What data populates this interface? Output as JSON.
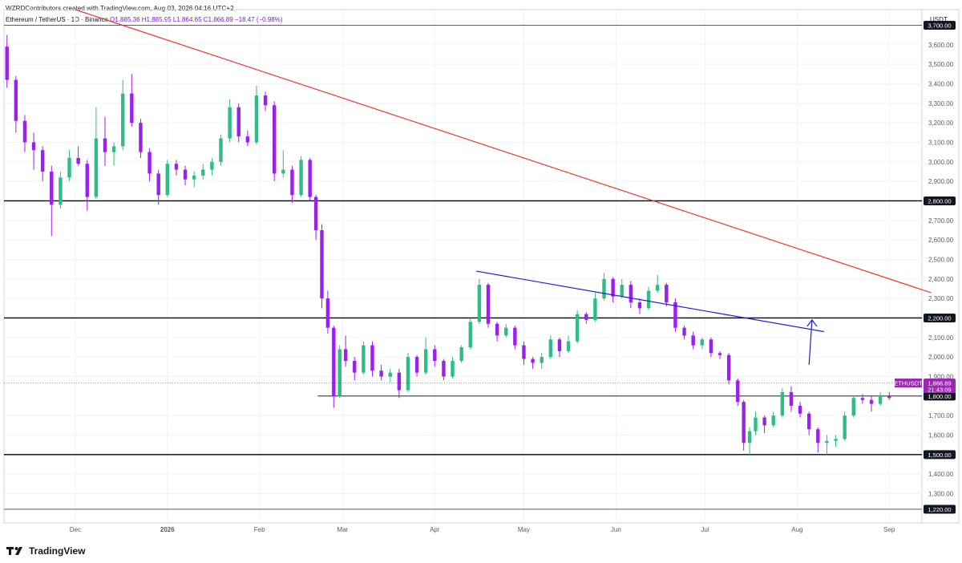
{
  "header": {
    "credit": "WZRDContributors created with TradingView.com, Aug 03, 2026 04:16 UTC+2",
    "symbol_line": "Ethereum / TetherUS · 1D · Binance",
    "open": "O1,885.36",
    "high": "H1,885.95",
    "low": "L1,864.65",
    "close": "C1,866.89",
    "change": "−18.47 (−0.98%)"
  },
  "axis": {
    "unit": "USDT",
    "y_ticks": [
      "3,600.00",
      "3,500.00",
      "3,400.00",
      "3,300.00",
      "3,200.00",
      "3,100.00",
      "3,000.00",
      "2,900.00",
      "2,700.00",
      "2,600.00",
      "2,500.00",
      "2,400.00",
      "2,300.00",
      "2,100.00",
      "2,000.00",
      "1,900.00",
      "1,700.00",
      "1,600.00",
      "1,400.00",
      "1,300.00"
    ],
    "x_ticks": [
      "Dec",
      "2026",
      "Feb",
      "Mar",
      "Apr",
      "May",
      "Jun",
      "Jul",
      "Aug",
      "Sep"
    ]
  },
  "price_tag": {
    "symbol": "ETHUSDT",
    "price": "1,866.89",
    "countdown": "21:43:09"
  },
  "level_labels": [
    "3,700.00",
    "2,800.00",
    "2,200.00",
    "1,800.00",
    "1,500.00",
    "1,220.00"
  ],
  "footer": {
    "brand": "TradingView"
  },
  "colors": {
    "up": "#2ebd85",
    "down": "#9c1ef0",
    "resistance": "#e53935",
    "trendline": "#1e22c8",
    "level": "#000000",
    "accent": "#9c27b0"
  },
  "chart_data": {
    "type": "candlestick",
    "ylim": [
      1150,
      3780
    ],
    "x_domain": [
      "2025-11-07",
      "2026-09-12"
    ],
    "series": [
      {
        "x": "2025-11-08",
        "o": 3590,
        "h": 3650,
        "l": 3380,
        "c": 3420
      },
      {
        "x": "2025-11-11",
        "o": 3420,
        "h": 3440,
        "l": 3150,
        "c": 3210
      },
      {
        "x": "2025-11-14",
        "o": 3210,
        "h": 3240,
        "l": 3050,
        "c": 3100
      },
      {
        "x": "2025-11-17",
        "o": 3100,
        "h": 3150,
        "l": 2960,
        "c": 3060
      },
      {
        "x": "2025-11-20",
        "o": 3060,
        "h": 3080,
        "l": 2900,
        "c": 2950
      },
      {
        "x": "2025-11-23",
        "o": 2950,
        "h": 2980,
        "l": 2620,
        "c": 2780
      },
      {
        "x": "2025-11-26",
        "o": 2780,
        "h": 2950,
        "l": 2760,
        "c": 2920
      },
      {
        "x": "2025-11-29",
        "o": 2920,
        "h": 3060,
        "l": 2900,
        "c": 3020
      },
      {
        "x": "2025-12-02",
        "o": 3020,
        "h": 3080,
        "l": 2980,
        "c": 2990
      },
      {
        "x": "2025-12-05",
        "o": 2990,
        "h": 3010,
        "l": 2750,
        "c": 2820
      },
      {
        "x": "2025-12-08",
        "o": 2820,
        "h": 3280,
        "l": 2810,
        "c": 3120
      },
      {
        "x": "2025-12-11",
        "o": 3120,
        "h": 3230,
        "l": 2980,
        "c": 3050
      },
      {
        "x": "2025-12-14",
        "o": 3050,
        "h": 3100,
        "l": 2980,
        "c": 3080
      },
      {
        "x": "2025-12-17",
        "o": 3080,
        "h": 3420,
        "l": 3060,
        "c": 3350
      },
      {
        "x": "2025-12-20",
        "o": 3350,
        "h": 3450,
        "l": 3180,
        "c": 3200
      },
      {
        "x": "2025-12-23",
        "o": 3200,
        "h": 3220,
        "l": 3020,
        "c": 3050
      },
      {
        "x": "2025-12-26",
        "o": 3050,
        "h": 3070,
        "l": 2900,
        "c": 2940
      },
      {
        "x": "2025-12-29",
        "o": 2940,
        "h": 2960,
        "l": 2780,
        "c": 2830
      },
      {
        "x": "2026-01-01",
        "o": 2830,
        "h": 3010,
        "l": 2820,
        "c": 2990
      },
      {
        "x": "2026-01-04",
        "o": 2990,
        "h": 3010,
        "l": 2930,
        "c": 2960
      },
      {
        "x": "2026-01-07",
        "o": 2960,
        "h": 2980,
        "l": 2880,
        "c": 2910
      },
      {
        "x": "2026-01-10",
        "o": 2910,
        "h": 2950,
        "l": 2870,
        "c": 2930
      },
      {
        "x": "2026-01-13",
        "o": 2930,
        "h": 2990,
        "l": 2910,
        "c": 2960
      },
      {
        "x": "2026-01-16",
        "o": 2960,
        "h": 3020,
        "l": 2930,
        "c": 3000
      },
      {
        "x": "2026-01-19",
        "o": 3000,
        "h": 3140,
        "l": 2980,
        "c": 3120
      },
      {
        "x": "2026-01-22",
        "o": 3120,
        "h": 3320,
        "l": 3100,
        "c": 3280
      },
      {
        "x": "2026-01-25",
        "o": 3280,
        "h": 3300,
        "l": 3100,
        "c": 3130
      },
      {
        "x": "2026-01-28",
        "o": 3130,
        "h": 3160,
        "l": 3080,
        "c": 3100
      },
      {
        "x": "2026-01-31",
        "o": 3100,
        "h": 3390,
        "l": 3090,
        "c": 3340
      },
      {
        "x": "2026-02-03",
        "o": 3340,
        "h": 3360,
        "l": 3260,
        "c": 3290
      },
      {
        "x": "2026-02-06",
        "o": 3290,
        "h": 3310,
        "l": 2900,
        "c": 2940
      },
      {
        "x": "2026-02-09",
        "o": 2940,
        "h": 3060,
        "l": 2920,
        "c": 2960
      },
      {
        "x": "2026-02-12",
        "o": 2960,
        "h": 2980,
        "l": 2790,
        "c": 2830
      },
      {
        "x": "2026-02-15",
        "o": 2830,
        "h": 3030,
        "l": 2820,
        "c": 3010
      },
      {
        "x": "2026-02-18",
        "o": 3010,
        "h": 3020,
        "l": 2800,
        "c": 2820
      },
      {
        "x": "2026-02-20",
        "o": 2820,
        "h": 2830,
        "l": 2600,
        "c": 2650
      },
      {
        "x": "2026-02-22",
        "o": 2650,
        "h": 2680,
        "l": 2250,
        "c": 2300
      },
      {
        "x": "2026-02-24",
        "o": 2300,
        "h": 2340,
        "l": 2120,
        "c": 2150
      },
      {
        "x": "2026-02-26",
        "o": 2150,
        "h": 2160,
        "l": 1740,
        "c": 1800
      },
      {
        "x": "2026-02-28",
        "o": 1800,
        "h": 2060,
        "l": 1790,
        "c": 2040
      },
      {
        "x": "2026-03-02",
        "o": 2040,
        "h": 2110,
        "l": 1950,
        "c": 1980
      },
      {
        "x": "2026-03-05",
        "o": 1980,
        "h": 2000,
        "l": 1880,
        "c": 1920
      },
      {
        "x": "2026-03-08",
        "o": 1920,
        "h": 2080,
        "l": 1910,
        "c": 2060
      },
      {
        "x": "2026-03-11",
        "o": 2060,
        "h": 2080,
        "l": 1900,
        "c": 1930
      },
      {
        "x": "2026-03-14",
        "o": 1930,
        "h": 1960,
        "l": 1880,
        "c": 1900
      },
      {
        "x": "2026-03-17",
        "o": 1900,
        "h": 1940,
        "l": 1870,
        "c": 1920
      },
      {
        "x": "2026-03-20",
        "o": 1920,
        "h": 1940,
        "l": 1790,
        "c": 1830
      },
      {
        "x": "2026-03-23",
        "o": 1830,
        "h": 2020,
        "l": 1820,
        "c": 2000
      },
      {
        "x": "2026-03-26",
        "o": 2000,
        "h": 2010,
        "l": 1900,
        "c": 1920
      },
      {
        "x": "2026-03-29",
        "o": 1920,
        "h": 2100,
        "l": 1910,
        "c": 2040
      },
      {
        "x": "2026-04-01",
        "o": 2040,
        "h": 2060,
        "l": 1950,
        "c": 1980
      },
      {
        "x": "2026-04-04",
        "o": 1980,
        "h": 1990,
        "l": 1880,
        "c": 1900
      },
      {
        "x": "2026-04-07",
        "o": 1900,
        "h": 2000,
        "l": 1890,
        "c": 1980
      },
      {
        "x": "2026-04-10",
        "o": 1980,
        "h": 2060,
        "l": 1970,
        "c": 2050
      },
      {
        "x": "2026-04-13",
        "o": 2050,
        "h": 2200,
        "l": 2040,
        "c": 2180
      },
      {
        "x": "2026-04-16",
        "o": 2180,
        "h": 2400,
        "l": 2170,
        "c": 2370
      },
      {
        "x": "2026-04-19",
        "o": 2370,
        "h": 2380,
        "l": 2150,
        "c": 2170
      },
      {
        "x": "2026-04-22",
        "o": 2170,
        "h": 2180,
        "l": 2080,
        "c": 2110
      },
      {
        "x": "2026-04-25",
        "o": 2110,
        "h": 2170,
        "l": 2100,
        "c": 2150
      },
      {
        "x": "2026-04-28",
        "o": 2150,
        "h": 2160,
        "l": 2040,
        "c": 2060
      },
      {
        "x": "2026-05-01",
        "o": 2060,
        "h": 2080,
        "l": 1960,
        "c": 1990
      },
      {
        "x": "2026-05-04",
        "o": 1990,
        "h": 2000,
        "l": 1940,
        "c": 1970
      },
      {
        "x": "2026-05-07",
        "o": 1970,
        "h": 2020,
        "l": 1940,
        "c": 2000
      },
      {
        "x": "2026-05-10",
        "o": 2000,
        "h": 2110,
        "l": 1990,
        "c": 2090
      },
      {
        "x": "2026-05-13",
        "o": 2090,
        "h": 2100,
        "l": 2000,
        "c": 2030
      },
      {
        "x": "2026-05-16",
        "o": 2030,
        "h": 2110,
        "l": 2020,
        "c": 2080
      },
      {
        "x": "2026-05-19",
        "o": 2080,
        "h": 2240,
        "l": 2070,
        "c": 2220
      },
      {
        "x": "2026-05-22",
        "o": 2220,
        "h": 2230,
        "l": 2170,
        "c": 2190
      },
      {
        "x": "2026-05-25",
        "o": 2190,
        "h": 2330,
        "l": 2180,
        "c": 2300
      },
      {
        "x": "2026-05-28",
        "o": 2300,
        "h": 2430,
        "l": 2290,
        "c": 2400
      },
      {
        "x": "2026-05-31",
        "o": 2400,
        "h": 2410,
        "l": 2280,
        "c": 2310
      },
      {
        "x": "2026-06-03",
        "o": 2310,
        "h": 2400,
        "l": 2300,
        "c": 2370
      },
      {
        "x": "2026-06-06",
        "o": 2370,
        "h": 2390,
        "l": 2250,
        "c": 2280
      },
      {
        "x": "2026-06-09",
        "o": 2280,
        "h": 2300,
        "l": 2220,
        "c": 2250
      },
      {
        "x": "2026-06-12",
        "o": 2250,
        "h": 2360,
        "l": 2240,
        "c": 2340
      },
      {
        "x": "2026-06-15",
        "o": 2340,
        "h": 2420,
        "l": 2330,
        "c": 2370
      },
      {
        "x": "2026-06-18",
        "o": 2370,
        "h": 2380,
        "l": 2260,
        "c": 2280
      },
      {
        "x": "2026-06-21",
        "o": 2280,
        "h": 2300,
        "l": 2130,
        "c": 2150
      },
      {
        "x": "2026-06-24",
        "o": 2150,
        "h": 2160,
        "l": 2090,
        "c": 2110
      },
      {
        "x": "2026-06-27",
        "o": 2110,
        "h": 2130,
        "l": 2040,
        "c": 2060
      },
      {
        "x": "2026-06-30",
        "o": 2060,
        "h": 2100,
        "l": 2040,
        "c": 2090
      },
      {
        "x": "2026-07-03",
        "o": 2090,
        "h": 2100,
        "l": 2000,
        "c": 2020
      },
      {
        "x": "2026-07-06",
        "o": 2020,
        "h": 2030,
        "l": 1990,
        "c": 2010
      },
      {
        "x": "2026-07-09",
        "o": 2010,
        "h": 2020,
        "l": 1860,
        "c": 1880
      },
      {
        "x": "2026-07-12",
        "o": 1880,
        "h": 1890,
        "l": 1750,
        "c": 1770
      },
      {
        "x": "2026-07-14",
        "o": 1770,
        "h": 1780,
        "l": 1520,
        "c": 1560
      },
      {
        "x": "2026-07-16",
        "o": 1560,
        "h": 1640,
        "l": 1500,
        "c": 1620
      },
      {
        "x": "2026-07-18",
        "o": 1620,
        "h": 1720,
        "l": 1600,
        "c": 1690
      },
      {
        "x": "2026-07-21",
        "o": 1690,
        "h": 1700,
        "l": 1610,
        "c": 1650
      },
      {
        "x": "2026-07-24",
        "o": 1650,
        "h": 1720,
        "l": 1640,
        "c": 1700
      },
      {
        "x": "2026-07-27",
        "o": 1700,
        "h": 1840,
        "l": 1690,
        "c": 1820
      },
      {
        "x": "2026-07-30",
        "o": 1820,
        "h": 1850,
        "l": 1720,
        "c": 1750
      },
      {
        "x": "2026-08-02",
        "o": 1750,
        "h": 1770,
        "l": 1690,
        "c": 1710
      },
      {
        "x": "2026-08-05",
        "o": 1710,
        "h": 1720,
        "l": 1600,
        "c": 1630
      },
      {
        "x": "2026-08-08",
        "o": 1630,
        "h": 1640,
        "l": 1510,
        "c": 1560
      },
      {
        "x": "2026-08-11",
        "o": 1560,
        "h": 1600,
        "l": 1500,
        "c": 1570
      },
      {
        "x": "2026-08-14",
        "o": 1570,
        "h": 1600,
        "l": 1540,
        "c": 1580
      },
      {
        "x": "2026-08-17",
        "o": 1580,
        "h": 1720,
        "l": 1570,
        "c": 1700
      },
      {
        "x": "2026-08-20",
        "o": 1700,
        "h": 1800,
        "l": 1690,
        "c": 1790
      },
      {
        "x": "2026-08-23",
        "o": 1790,
        "h": 1810,
        "l": 1760,
        "c": 1780
      },
      {
        "x": "2026-08-26",
        "o": 1780,
        "h": 1800,
        "l": 1720,
        "c": 1760
      },
      {
        "x": "2026-08-29",
        "o": 1760,
        "h": 1820,
        "l": 1750,
        "c": 1800
      },
      {
        "x": "2026-09-01",
        "o": 1800,
        "h": 1820,
        "l": 1780,
        "c": 1790
      }
    ],
    "horizontal_levels": [
      3700,
      2800,
      2200,
      1800,
      1500,
      1220
    ],
    "resistance_line": {
      "from": [
        "2025-12-01",
        3780
      ],
      "to": [
        "2026-09-15",
        2330
      ]
    },
    "descending_trendline": {
      "from": [
        "2026-04-15",
        2440
      ],
      "to": [
        "2026-08-10",
        2130
      ]
    },
    "projection_arrow": {
      "from": [
        "2026-08-05",
        1960
      ],
      "to": [
        "2026-08-06",
        2190
      ]
    },
    "last_price": 1866.89
  }
}
